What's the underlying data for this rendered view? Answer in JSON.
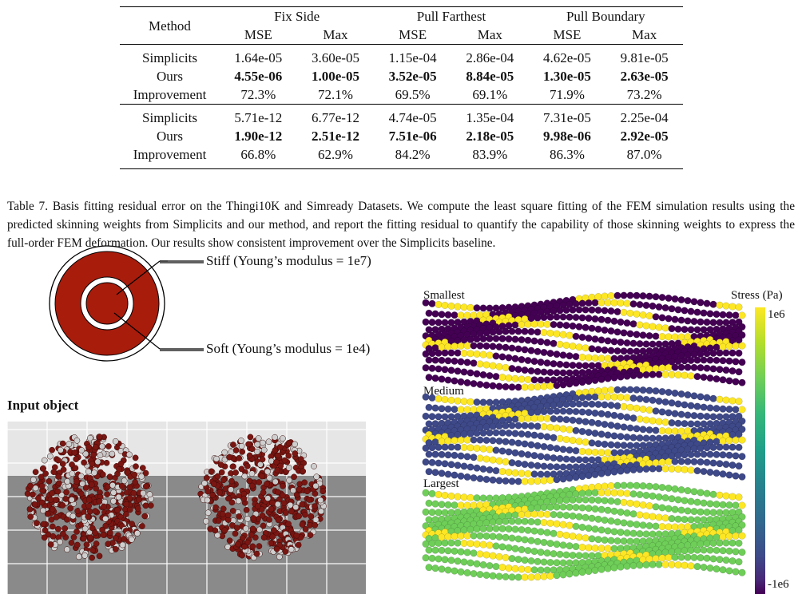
{
  "table": {
    "method_header": "Method",
    "groups": [
      "Fix Side",
      "Pull Farthest",
      "Pull Boundary"
    ],
    "subheaders": [
      "MSE",
      "Max",
      "MSE",
      "Max",
      "MSE",
      "Max"
    ],
    "sections": [
      {
        "rows": [
          {
            "method": "Simplicits",
            "values": [
              "1.64e-05",
              "3.60e-05",
              "1.15e-04",
              "2.86e-04",
              "4.62e-05",
              "9.81e-05"
            ],
            "bold": false
          },
          {
            "method": "Ours",
            "values": [
              "4.55e-06",
              "1.00e-05",
              "3.52e-05",
              "8.84e-05",
              "1.30e-05",
              "2.63e-05"
            ],
            "bold": true
          },
          {
            "method": "Improvement",
            "values": [
              "72.3%",
              "72.1%",
              "69.5%",
              "69.1%",
              "71.9%",
              "73.2%"
            ],
            "bold": false
          }
        ]
      },
      {
        "rows": [
          {
            "method": "Simplicits",
            "values": [
              "5.71e-12",
              "6.77e-12",
              "4.74e-05",
              "1.35e-04",
              "7.31e-05",
              "2.25e-04"
            ],
            "bold": false
          },
          {
            "method": "Ours",
            "values": [
              "1.90e-12",
              "2.51e-12",
              "7.51e-06",
              "2.18e-05",
              "9.98e-06",
              "2.92e-05"
            ],
            "bold": true
          },
          {
            "method": "Improvement",
            "values": [
              "66.8%",
              "62.9%",
              "84.2%",
              "83.9%",
              "86.3%",
              "87.0%"
            ],
            "bold": false
          }
        ]
      }
    ]
  },
  "caption": "Table 7. Basis fitting residual error on the Thingi10K and Simready Datasets. We compute the least square fitting of the FEM simulation results using the predicted skinning weights from Simplicits and our method, and report the fitting residual to quantify the capability of those skinning weights to express the full-order FEM deformation. Our results show consistent improvement over the Simplicits baseline.",
  "left_figure": {
    "stiff_label": "Stiff (Young’s modulus = 1e7)",
    "soft_label": "Soft (Young’s modulus = 1e4)",
    "input_label": "Input object",
    "ring_color": "#a81c0c",
    "particle_color": "#7a1612"
  },
  "right_figure": {
    "labels": [
      "Smallest",
      "Medium",
      "Largest"
    ],
    "colorbar_title": "Stress (Pa)",
    "colorbar_max": "1e6",
    "colorbar_min": "-1e6"
  }
}
